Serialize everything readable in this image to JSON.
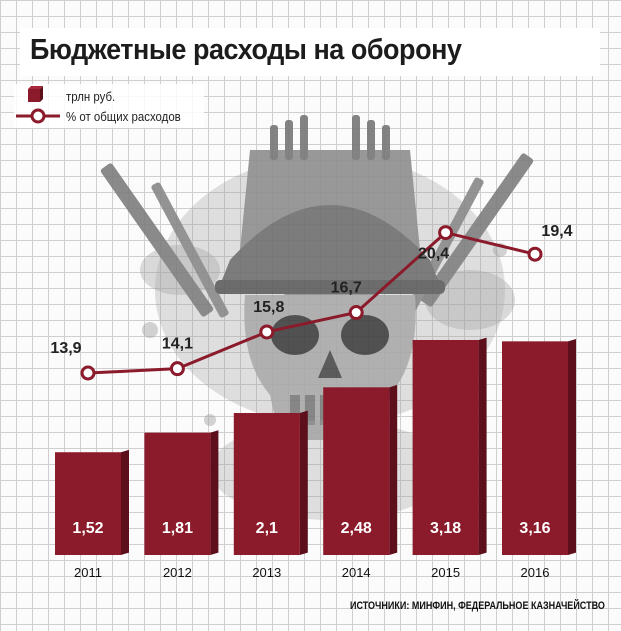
{
  "title": "Бюджетные расходы на оборону",
  "legend": {
    "bars_label": "трлн руб.",
    "line_label": "% от общих расходов"
  },
  "source": "ИСТОЧНИКИ: МИНФИН, ФЕДЕРАЛЬНОЕ КАЗНАЧЕЙСТВО",
  "colors": {
    "bar": "#8b1a2b",
    "bar_shadow": "#5e0f1c",
    "line": "#8b1a2b",
    "marker_fill": "#ffffff",
    "background_illustration": "#9a9a9a"
  },
  "background_illustration": "skull-helmet-weapons-emblem",
  "chart_data": {
    "type": "bar",
    "categories": [
      "2011",
      "2012",
      "2013",
      "2014",
      "2015",
      "2016"
    ],
    "series": [
      {
        "name": "трлн руб.",
        "type": "bar",
        "values": [
          1.52,
          1.81,
          2.1,
          2.48,
          3.18,
          3.16
        ],
        "labels": [
          "1,52",
          "1,81",
          "2,1",
          "2,48",
          "3,18",
          "3,16"
        ]
      },
      {
        "name": "% от общих расходов",
        "type": "line",
        "values": [
          13.9,
          14.1,
          15.8,
          16.7,
          20.4,
          19.4
        ],
        "labels": [
          "13,9",
          "14,1",
          "15,8",
          "16,7",
          "20,4",
          "19,4"
        ]
      }
    ],
    "title": "Бюджетные расходы на оборону",
    "xlabel": "",
    "ylabel": "",
    "grid": true,
    "legend_position": "top-left"
  }
}
